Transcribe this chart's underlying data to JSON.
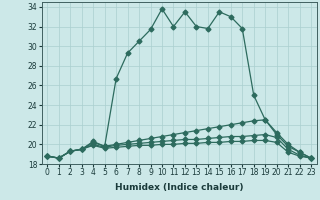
{
  "xlabel": "Humidex (Indice chaleur)",
  "xlim": [
    -0.5,
    23.5
  ],
  "ylim": [
    18,
    34.5
  ],
  "yticks": [
    18,
    20,
    22,
    24,
    26,
    28,
    30,
    32,
    34
  ],
  "xticks": [
    0,
    1,
    2,
    3,
    4,
    5,
    6,
    7,
    8,
    9,
    10,
    11,
    12,
    13,
    14,
    15,
    16,
    17,
    18,
    19,
    20,
    21,
    22,
    23
  ],
  "background_color": "#cce8e8",
  "grid_color": "#aacfcf",
  "line_color": "#2d6b5e",
  "lines": [
    [
      18.8,
      18.6,
      19.3,
      19.5,
      20.2,
      19.8,
      26.7,
      29.3,
      30.5,
      31.7,
      33.8,
      32.0,
      33.5,
      32.0,
      31.8,
      33.5,
      33.0,
      31.8,
      25.0,
      22.5,
      21.0,
      19.8,
      19.2,
      18.6
    ],
    [
      18.8,
      18.6,
      19.3,
      19.5,
      20.3,
      19.8,
      20.0,
      20.2,
      20.4,
      20.6,
      20.8,
      21.0,
      21.2,
      21.4,
      21.6,
      21.8,
      22.0,
      22.2,
      22.4,
      22.5,
      21.2,
      20.0,
      19.2,
      18.6
    ],
    [
      18.8,
      18.6,
      19.3,
      19.5,
      20.0,
      19.7,
      19.9,
      20.0,
      20.1,
      20.2,
      20.3,
      20.4,
      20.5,
      20.5,
      20.6,
      20.7,
      20.8,
      20.8,
      20.9,
      21.0,
      20.7,
      19.5,
      18.9,
      18.6
    ],
    [
      18.8,
      18.6,
      19.3,
      19.5,
      19.9,
      19.6,
      19.7,
      19.8,
      19.9,
      19.9,
      20.0,
      20.0,
      20.1,
      20.1,
      20.2,
      20.2,
      20.3,
      20.3,
      20.4,
      20.4,
      20.2,
      19.2,
      18.8,
      18.6
    ]
  ],
  "marker": "D",
  "markersize": 2.5,
  "linewidth": 0.9,
  "tick_fontsize": 5.5,
  "xlabel_fontsize": 6.5
}
